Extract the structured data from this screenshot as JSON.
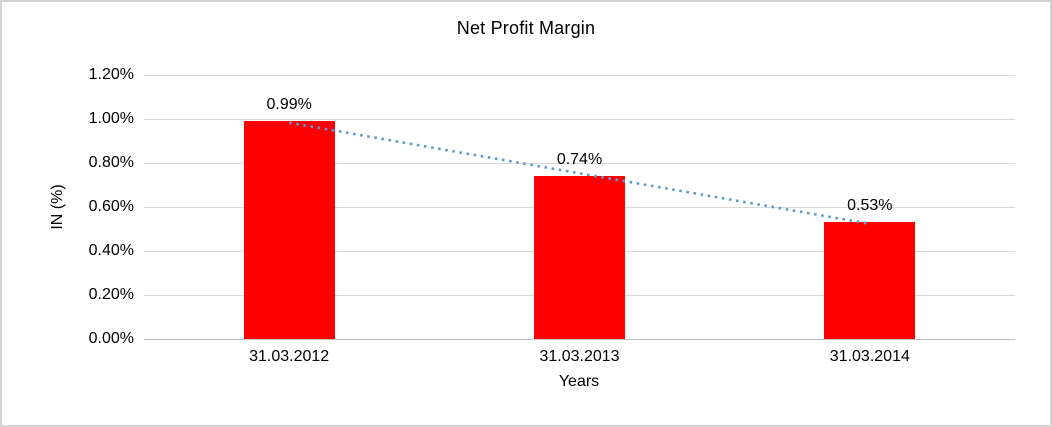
{
  "chart": {
    "background": "#FFFFFF",
    "border_color": "#D3D3D3"
  },
  "chart_data": {
    "type": "bar",
    "title": "Net Profit Margin",
    "xlabel": "Years",
    "ylabel": "IN (%)",
    "categories": [
      "31.03.2012",
      "31.03.2013",
      "31.03.2014"
    ],
    "values": [
      0.99,
      0.74,
      0.53
    ],
    "data_labels": [
      "0.99%",
      "0.74%",
      "0.53%"
    ],
    "ylim": [
      0,
      1.2
    ],
    "ytick_step": 0.2,
    "ytick_labels": [
      "0.00%",
      "0.20%",
      "0.40%",
      "0.60%",
      "0.80%",
      "1.00%",
      "1.20%"
    ],
    "grid": true,
    "legend": false,
    "bar_color": "#FF0000",
    "gridline_color": "#D9D9D9",
    "axis_line_color": "#BFBFBF",
    "text_color": "#000000",
    "trendline": {
      "type": "linear",
      "style": "dotted",
      "color": "#5B9BD5",
      "start_value": 0.9833,
      "end_value": 0.5233
    }
  }
}
